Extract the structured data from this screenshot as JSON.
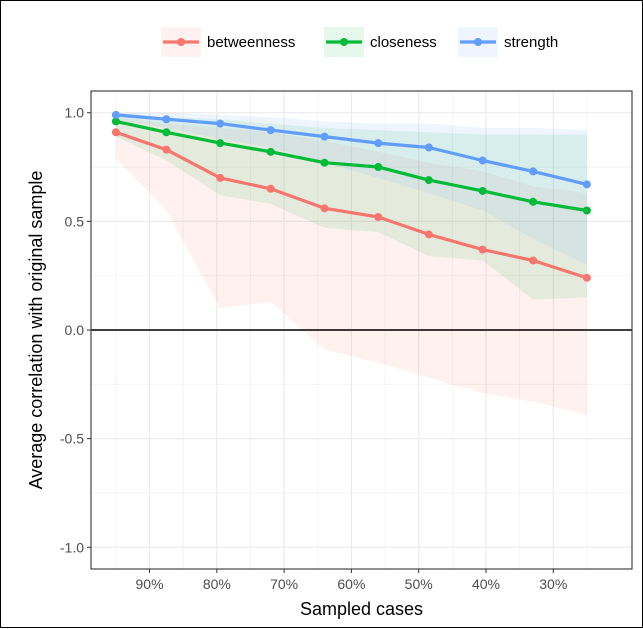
{
  "chart_data": {
    "type": "line",
    "xlabel": "Sampled cases",
    "ylabel": "Average correlation with original sample",
    "x_ticks": [
      "90%",
      "80%",
      "70%",
      "60%",
      "50%",
      "40%",
      "30%"
    ],
    "x_tick_values": [
      0.9,
      0.8,
      0.7,
      0.6,
      0.5,
      0.4,
      0.3
    ],
    "xlim": [
      0.987,
      0.183
    ],
    "x_reversed": true,
    "y_ticks": [
      "1.0",
      "0.5",
      "0.0",
      "-0.5",
      "-1.0"
    ],
    "y_tick_values": [
      1.0,
      0.5,
      0.0,
      -0.5,
      -1.0
    ],
    "ylim": [
      -1.1,
      1.1
    ],
    "grid": true,
    "reference_line_y": 0,
    "legend_position": "top",
    "x": [
      0.95,
      0.875,
      0.795,
      0.72,
      0.64,
      0.56,
      0.485,
      0.405,
      0.33,
      0.25
    ],
    "series": [
      {
        "name": "betweenness",
        "color": "#F8766D",
        "values": [
          0.91,
          0.83,
          0.7,
          0.65,
          0.56,
          0.52,
          0.44,
          0.37,
          0.32,
          0.24
        ],
        "lower": [
          0.79,
          0.55,
          0.1,
          0.13,
          -0.09,
          -0.15,
          -0.22,
          -0.29,
          -0.33,
          -0.39
        ],
        "upper": [
          0.98,
          0.95,
          0.93,
          0.91,
          0.87,
          0.82,
          0.77,
          0.73,
          0.66,
          0.63
        ]
      },
      {
        "name": "closeness",
        "color": "#00BA38",
        "values": [
          0.96,
          0.91,
          0.86,
          0.82,
          0.77,
          0.75,
          0.69,
          0.64,
          0.59,
          0.55
        ],
        "lower": [
          0.89,
          0.78,
          0.62,
          0.58,
          0.47,
          0.45,
          0.34,
          0.32,
          0.14,
          0.15
        ],
        "upper": [
          1.0,
          0.98,
          0.97,
          0.95,
          0.93,
          0.92,
          0.91,
          0.9,
          0.9,
          0.9
        ]
      },
      {
        "name": "strength",
        "color": "#619CFF",
        "values": [
          0.99,
          0.97,
          0.95,
          0.92,
          0.89,
          0.86,
          0.84,
          0.78,
          0.73,
          0.67
        ],
        "lower": [
          0.97,
          0.93,
          0.88,
          0.84,
          0.77,
          0.7,
          0.63,
          0.55,
          0.42,
          0.3
        ],
        "upper": [
          1.0,
          1.0,
          0.99,
          0.98,
          0.96,
          0.95,
          0.95,
          0.93,
          0.93,
          0.92
        ]
      }
    ]
  }
}
